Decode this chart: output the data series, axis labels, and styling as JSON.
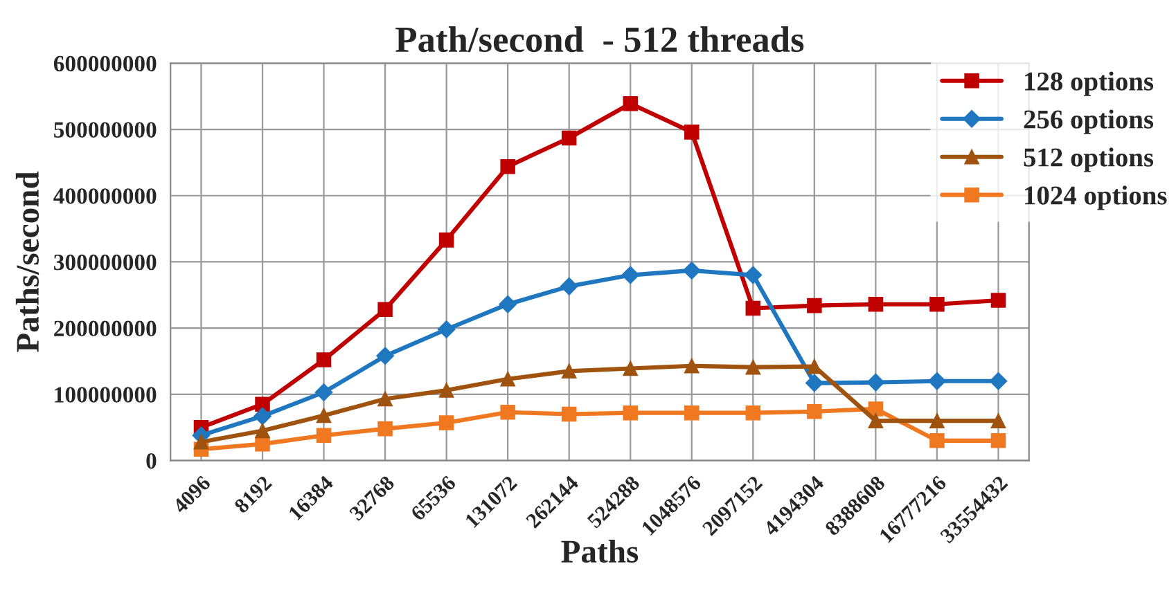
{
  "chart_data": {
    "type": "line",
    "title": "Path/second  - 512 threads",
    "xlabel": "Paths",
    "ylabel": "Paths/second",
    "categories": [
      "4096",
      "8192",
      "16384",
      "32768",
      "65536",
      "131072",
      "262144",
      "524288",
      "1048576",
      "2097152",
      "4194304",
      "8388608",
      "16777216",
      "33554432"
    ],
    "series": [
      {
        "name": "128 options",
        "color": "#c00000",
        "marker": "square",
        "values": [
          50000000,
          85000000,
          152000000,
          228000000,
          333000000,
          444000000,
          487000000,
          539000000,
          496000000,
          230000000,
          234000000,
          236000000,
          236000000,
          242000000
        ]
      },
      {
        "name": "256 options",
        "color": "#1f77c0",
        "marker": "diamond",
        "values": [
          38000000,
          67000000,
          103000000,
          158000000,
          198000000,
          236000000,
          263000000,
          280000000,
          287000000,
          280000000,
          117000000,
          118000000,
          120000000,
          120000000
        ]
      },
      {
        "name": "512 options",
        "color": "#a0520f",
        "marker": "triangle",
        "values": [
          28000000,
          45000000,
          68000000,
          93000000,
          106000000,
          123000000,
          135000000,
          139000000,
          143000000,
          141000000,
          142000000,
          60000000,
          60000000,
          60000000
        ]
      },
      {
        "name": "1024 options",
        "color": "#f07820",
        "marker": "square",
        "values": [
          17000000,
          25000000,
          38000000,
          48000000,
          57000000,
          73000000,
          70000000,
          72000000,
          72000000,
          72000000,
          74000000,
          78000000,
          30000000,
          30000000
        ]
      }
    ],
    "ylim": [
      0,
      600000000
    ],
    "yticks": [
      0,
      100000000,
      200000000,
      300000000,
      400000000,
      500000000,
      600000000
    ],
    "grid": true,
    "legend": "top right",
    "line_style": "solid"
  }
}
